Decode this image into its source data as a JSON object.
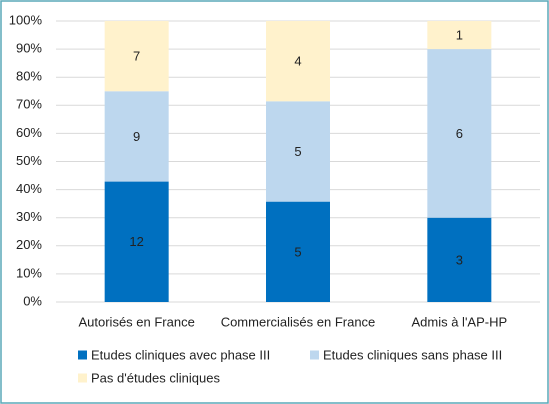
{
  "chart_data": {
    "type": "bar",
    "stacking": "percent",
    "categories": [
      "Autorisés en France",
      "Commercialisés en France",
      "Admis à l'AP-HP"
    ],
    "series": [
      {
        "name": "Etudes cliniques avec phase III",
        "color": "#0070c0",
        "values": [
          12,
          5,
          3
        ]
      },
      {
        "name": "Etudes cliniques sans phase III",
        "color": "#bdd7ee",
        "values": [
          9,
          5,
          6
        ]
      },
      {
        "name": "Pas d'études cliniques",
        "color": "#fff2cc",
        "values": [
          7,
          4,
          1
        ]
      }
    ],
    "ylim": [
      0,
      100
    ],
    "yticks": [
      {
        "value": 0,
        "label": "0%"
      },
      {
        "value": 10,
        "label": "10%"
      },
      {
        "value": 20,
        "label": "20%"
      },
      {
        "value": 30,
        "label": "30%"
      },
      {
        "value": 40,
        "label": "40%"
      },
      {
        "value": 50,
        "label": "50%"
      },
      {
        "value": 60,
        "label": "60%"
      },
      {
        "value": 70,
        "label": "70%"
      },
      {
        "value": 80,
        "label": "80%"
      },
      {
        "value": 90,
        "label": "90%"
      },
      {
        "value": 100,
        "label": "100%"
      }
    ],
    "grid": true,
    "legend": "bottom"
  }
}
